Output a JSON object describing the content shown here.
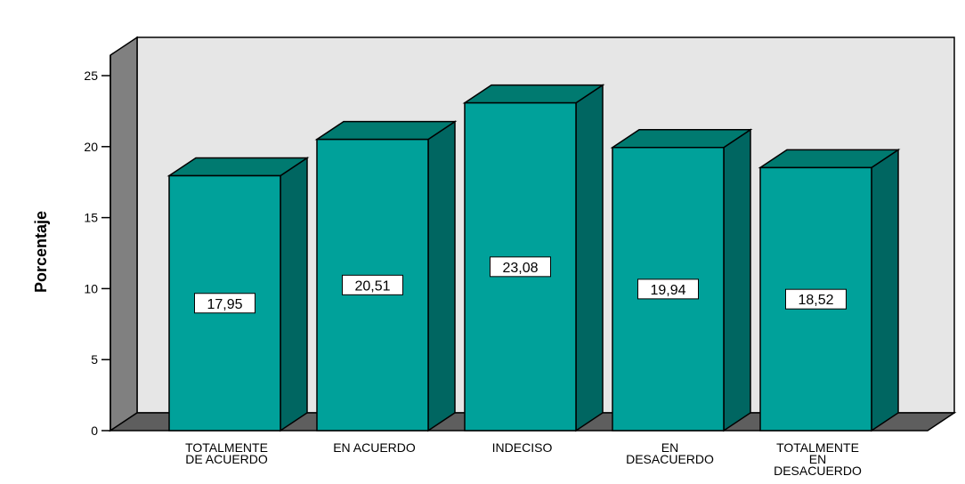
{
  "chart_data": {
    "type": "bar",
    "style": "3d",
    "categories": [
      [
        "TOTALMENTE",
        "DE ACUERDO"
      ],
      [
        "EN ACUERDO"
      ],
      [
        "INDECISO"
      ],
      [
        "EN",
        "DESACUERDO"
      ],
      [
        "TOTALMENTE",
        "EN",
        "DESACUERDO"
      ]
    ],
    "values": [
      17.95,
      20.51,
      23.08,
      19.94,
      18.52
    ],
    "value_labels": [
      "17,95",
      "20,51",
      "23,08",
      "19,94",
      "18,52"
    ],
    "ylabel": "Porcentaje",
    "ylim": [
      0,
      25
    ],
    "yticks": [
      0,
      5,
      10,
      15,
      20,
      25
    ],
    "grid": false,
    "colors": {
      "bar_front": "#00a19a",
      "bar_top": "#007a70",
      "bar_side": "#006661",
      "wall_back": "#e6e6e6",
      "wall_left": "#808080",
      "floor": "#5e5e5e"
    }
  }
}
